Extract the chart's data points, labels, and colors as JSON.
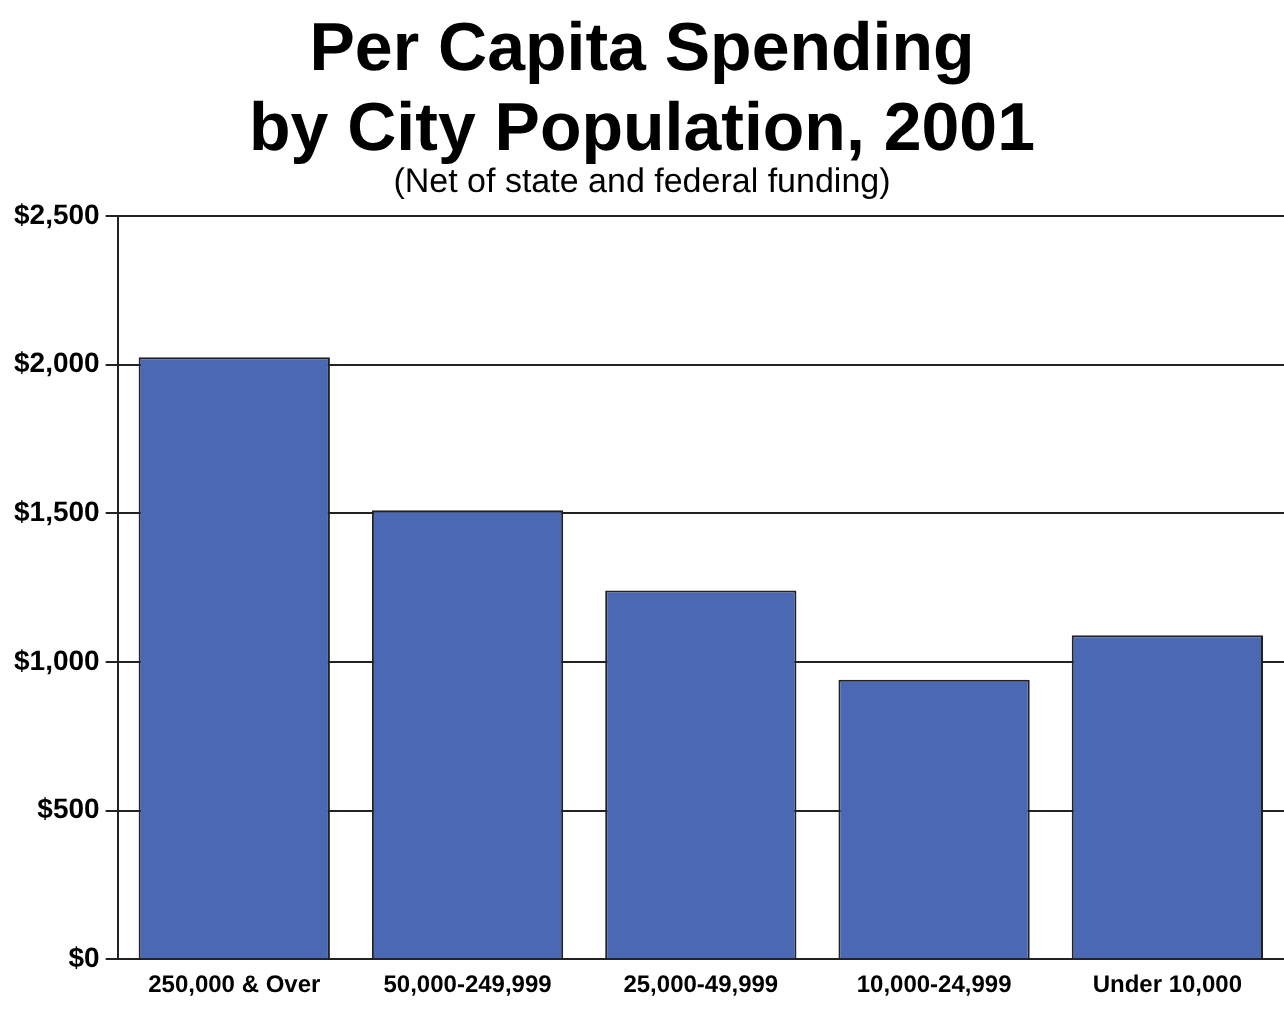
{
  "chart_data": {
    "type": "bar",
    "title": [
      "Per Capita Spending",
      "by City Population, 2001"
    ],
    "subtitle": "(Net of state and federal funding)",
    "categories": [
      "250,000 & Over",
      "50,000-249,999",
      "25,000-49,999",
      "10,000-24,999",
      "Under 10,000"
    ],
    "values": [
      2025,
      1510,
      1240,
      940,
      1090
    ],
    "color": "#4a68b3",
    "ylim": [
      0,
      2500
    ],
    "yticks": [
      {
        "value": 0,
        "label": "$0"
      },
      {
        "value": 500,
        "label": "$500"
      },
      {
        "value": 1000,
        "label": "$1,000"
      },
      {
        "value": 1500,
        "label": "$1,500"
      },
      {
        "value": 2000,
        "label": "$2,000"
      },
      {
        "value": 2500,
        "label": "$2,500"
      }
    ],
    "grid": "y",
    "legend": false
  }
}
